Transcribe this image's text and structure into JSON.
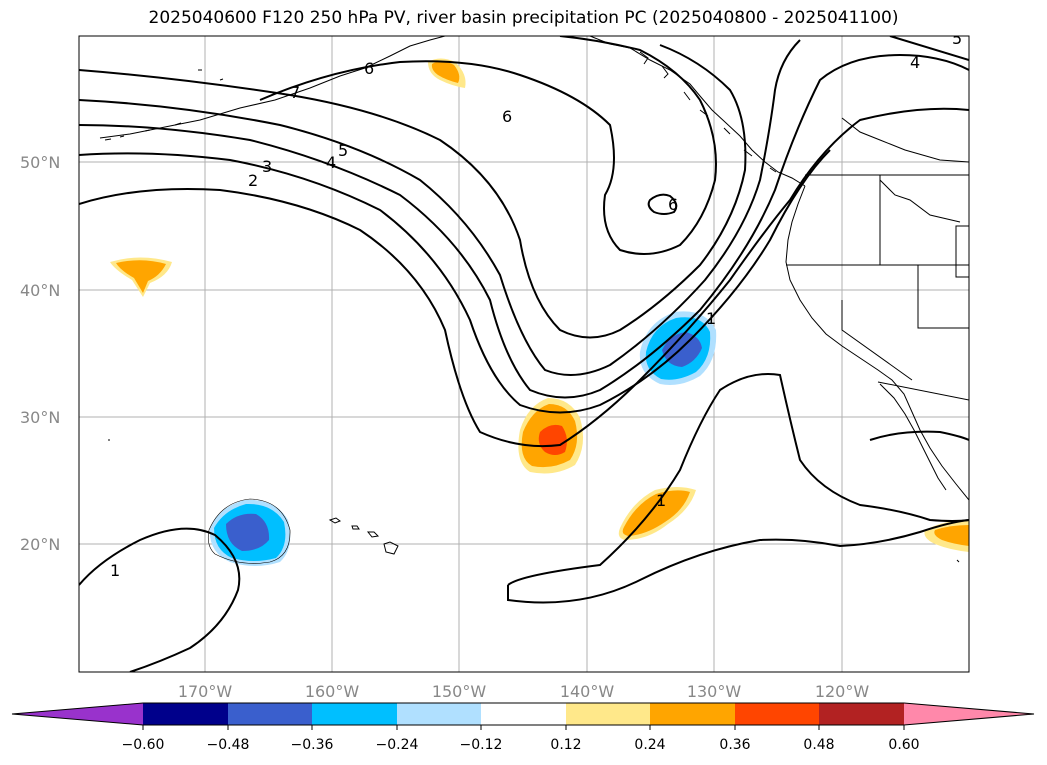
{
  "title": "2025040600 F120 250 hPa PV, river basin precipitation PC (2025040800 - 2025041100)",
  "lat_labels": [
    "50°N",
    "40°N",
    "30°N",
    "20°N"
  ],
  "lon_labels": [
    "170°W",
    "160°W",
    "150°W",
    "140°W",
    "130°W",
    "120°W"
  ],
  "contour_labels": [
    "1",
    "2",
    "3",
    "4",
    "5",
    "6",
    "7",
    "4",
    "6",
    "1",
    "1",
    "6",
    "5"
  ],
  "colorbar": {
    "tick_labels": [
      "−0.60",
      "−0.48",
      "−0.36",
      "−0.24",
      "−0.12",
      "0.12",
      "0.24",
      "0.36",
      "0.48",
      "0.60"
    ],
    "colors": [
      "#9932cc",
      "#00008b",
      "#3a5fcd",
      "#00bfff",
      "#b0e0ff",
      "#ffffff",
      "#ffe88a",
      "#ffa500",
      "#ff4500",
      "#b22222",
      "#ff88aa"
    ]
  },
  "fill_colors": {
    "pos1": "#ffe88a",
    "pos2": "#ffa500",
    "pos3": "#ff4500",
    "neg1": "#b0e0ff",
    "neg2": "#00bfff",
    "neg3": "#3a5fcd"
  }
}
